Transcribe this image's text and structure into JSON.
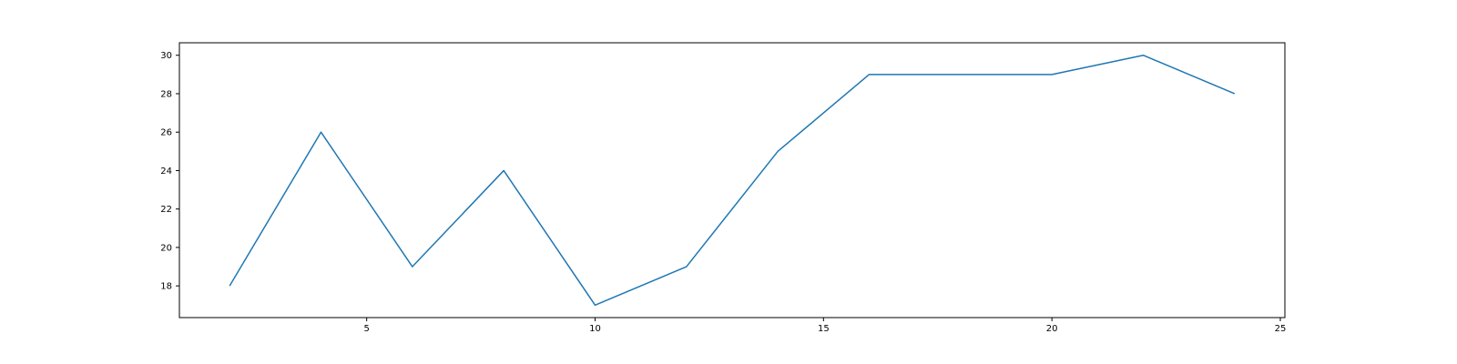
{
  "chart_data": {
    "type": "line",
    "title": "",
    "xlabel": "",
    "ylabel": "",
    "xlim": [
      0.9,
      25.1
    ],
    "ylim": [
      16.35,
      30.65
    ],
    "x_ticks": [
      5,
      10,
      15,
      20,
      25
    ],
    "y_ticks": [
      18,
      20,
      22,
      24,
      26,
      28,
      30
    ],
    "grid": false,
    "legend": "none",
    "x": [
      2,
      4,
      6,
      8,
      10,
      12,
      14,
      16,
      18,
      20,
      22,
      24
    ],
    "series": [
      {
        "values": [
          18,
          26,
          19,
          24,
          17,
          19,
          25,
          29,
          29,
          29,
          30,
          28
        ],
        "color": "#1f77b4"
      }
    ]
  }
}
